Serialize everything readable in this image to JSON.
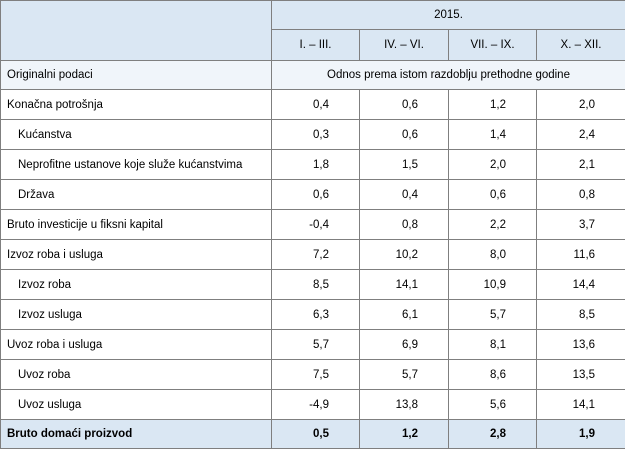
{
  "header": {
    "year": "2015.",
    "periods": [
      "I. – III.",
      "IV. – VI.",
      "VII. – IX.",
      "X. – XII."
    ]
  },
  "subheader": {
    "label": "Originalni podaci",
    "note": "Odnos prema istom razdoblju prethodne godine"
  },
  "rows": [
    {
      "label": "Konačna potrošnja",
      "indent": false,
      "values": [
        "0,4",
        "0,6",
        "1,2",
        "2,0"
      ]
    },
    {
      "label": "Kućanstva",
      "indent": true,
      "values": [
        "0,3",
        "0,6",
        "1,4",
        "2,4"
      ]
    },
    {
      "label": "Neprofitne ustanove koje služe kućanstvima",
      "indent": true,
      "values": [
        "1,8",
        "1,5",
        "2,0",
        "2,1"
      ]
    },
    {
      "label": "Država",
      "indent": true,
      "values": [
        "0,6",
        "0,4",
        "0,6",
        "0,8"
      ]
    },
    {
      "label": "Bruto investicije u fiksni kapital",
      "indent": false,
      "values": [
        "-0,4",
        "0,8",
        "2,2",
        "3,7"
      ]
    },
    {
      "label": "Izvoz roba i usluga",
      "indent": false,
      "values": [
        "7,2",
        "10,2",
        "8,0",
        "11,6"
      ]
    },
    {
      "label": "Izvoz roba",
      "indent": true,
      "values": [
        "8,5",
        "14,1",
        "10,9",
        "14,4"
      ]
    },
    {
      "label": "Izvoz usluga",
      "indent": true,
      "values": [
        "6,3",
        "6,1",
        "5,7",
        "8,5"
      ]
    },
    {
      "label": "Uvoz roba i usluga",
      "indent": false,
      "values": [
        "5,7",
        "6,9",
        "8,1",
        "13,6"
      ]
    },
    {
      "label": "Uvoz roba",
      "indent": true,
      "values": [
        "7,5",
        "5,7",
        "8,6",
        "13,5"
      ]
    },
    {
      "label": "Uvoz usluga",
      "indent": true,
      "values": [
        "-4,9",
        "13,8",
        "5,6",
        "14,1"
      ]
    }
  ],
  "total": {
    "label": "Bruto domaći proizvod",
    "values": [
      "0,5",
      "1,2",
      "2,8",
      "1,9"
    ]
  }
}
